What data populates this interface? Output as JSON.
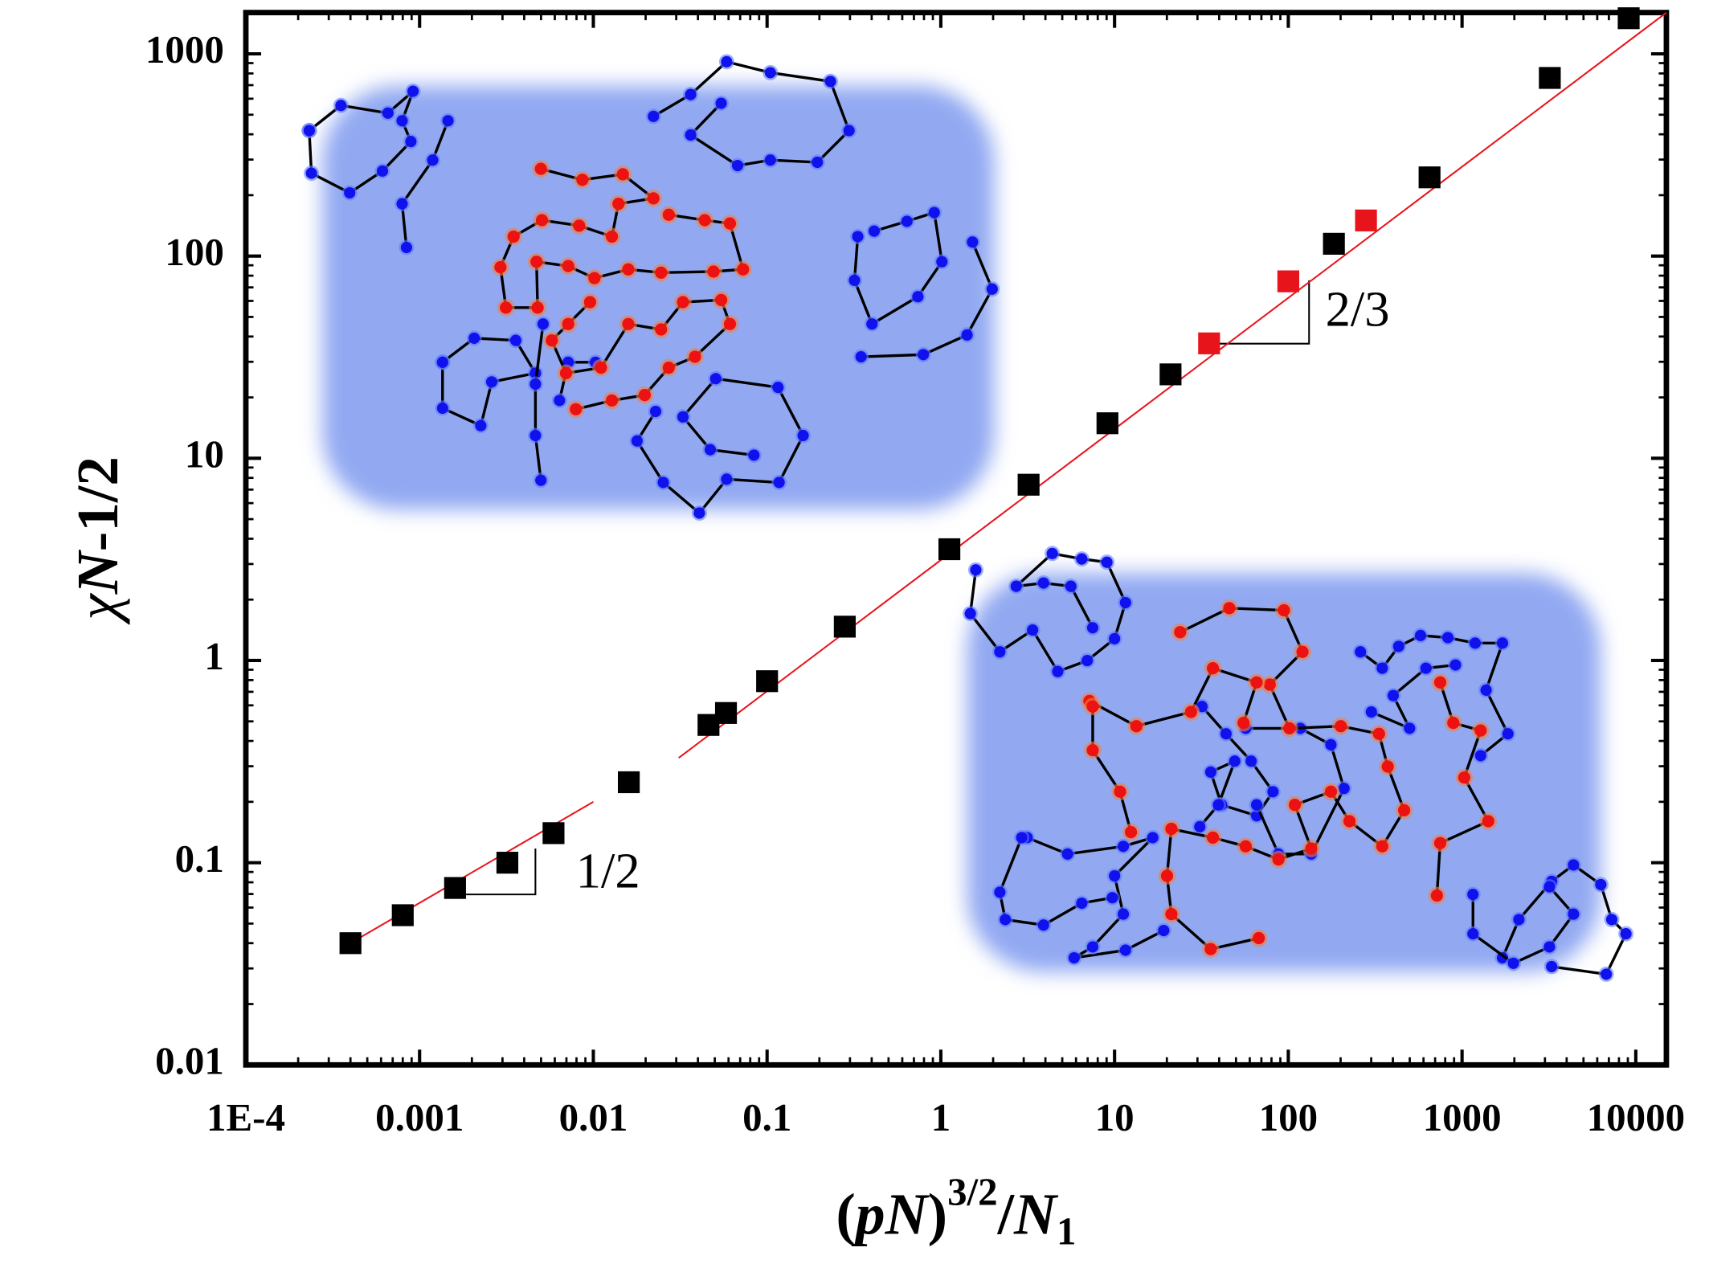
{
  "chart_data": {
    "type": "scatter",
    "xlabel_parts": [
      "(",
      "pN",
      ")",
      "3/2",
      "/",
      "N",
      "1"
    ],
    "ylabel_parts": [
      "χ",
      "N",
      "-1/2"
    ],
    "annotations": [
      "1/2",
      "2/3"
    ],
    "xscale": "log",
    "yscale": "log",
    "xlim": [
      0.0001,
      15000
    ],
    "ylim": [
      0.01,
      1600
    ],
    "xticks": [
      {
        "value": 0.0001,
        "label": "1E-4"
      },
      0.001,
      0.01,
      0.1,
      1,
      10,
      100,
      1000,
      10000
    ],
    "yticks": [
      0.01,
      0.1,
      1,
      10,
      100,
      1000
    ],
    "minor_ticks": true,
    "series": [
      {
        "style": "marker",
        "marker": "square",
        "color": "#000000",
        "x": [
          0.0004,
          0.0008,
          0.0016,
          0.0032,
          0.0059,
          0.016,
          0.046,
          0.058,
          0.1,
          0.28,
          1.12,
          3.2,
          9.1,
          21,
          183,
          650,
          3200,
          9100
        ],
        "values": [
          0.04,
          0.055,
          0.075,
          0.1,
          0.14,
          0.25,
          0.48,
          0.55,
          0.79,
          1.47,
          3.55,
          7.4,
          14.9,
          26,
          115,
          245,
          760,
          1500
        ]
      },
      {
        "style": "marker",
        "marker": "square",
        "color": "#e8141c",
        "x": [
          35,
          100,
          280
        ],
        "values": [
          37,
          75,
          150
        ]
      },
      {
        "style": "line",
        "color": "#e8141c",
        "x": [
          0.0004,
          0.01
        ],
        "values": [
          0.04,
          0.2
        ]
      },
      {
        "style": "line",
        "color": "#e8141c",
        "x": [
          0.031,
          15000
        ],
        "values": [
          0.33,
          1600
        ]
      }
    ]
  }
}
